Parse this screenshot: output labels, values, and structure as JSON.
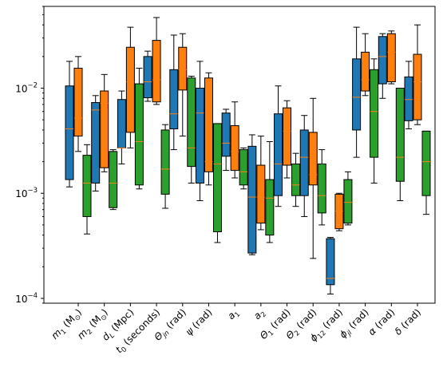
{
  "chart_data": {
    "type": "box",
    "y_scale": "log",
    "ylim": [
      9e-05,
      0.06
    ],
    "y_ticks": [
      {
        "value": 0.0001,
        "base": "10",
        "exp": "−4"
      },
      {
        "value": 0.001,
        "base": "10",
        "exp": "−3"
      },
      {
        "value": 0.01,
        "base": "10",
        "exp": "−2"
      }
    ],
    "categories": [
      {
        "main": "m",
        "sub": "1",
        "tail": " (M",
        "sun": "⊙",
        "end": ")"
      },
      {
        "main": "m",
        "sub": "2",
        "tail": " (M",
        "sun": "⊙",
        "end": ")"
      },
      {
        "main": "d",
        "sub": "L",
        "tail": " (Mpc)",
        "sun": "",
        "end": ""
      },
      {
        "main": "t",
        "sub": "0",
        "tail": " (seconds)",
        "sun": "",
        "end": ""
      },
      {
        "main": "Θ",
        "sub": "jn",
        "tail": " (rad)",
        "sun": "",
        "end": ""
      },
      {
        "main": "ψ",
        "sub": "",
        "tail": " (rad)",
        "sun": "",
        "end": ""
      },
      {
        "main": "a",
        "sub": "1",
        "tail": "",
        "sun": "",
        "end": ""
      },
      {
        "main": "a",
        "sub": "2",
        "tail": "",
        "sun": "",
        "end": ""
      },
      {
        "main": "Θ",
        "sub": "1",
        "tail": " (rad)",
        "sun": "",
        "end": ""
      },
      {
        "main": "Θ",
        "sub": "2",
        "tail": " (rad)",
        "sun": "",
        "end": ""
      },
      {
        "main": "ϕ",
        "sub": "12",
        "tail": " (rad)",
        "sun": "",
        "end": ""
      },
      {
        "main": "ϕ",
        "sub": "jl",
        "tail": " (rad)",
        "sun": "",
        "end": ""
      },
      {
        "main": "α",
        "sub": "",
        "tail": " (rad)",
        "sun": "",
        "end": ""
      },
      {
        "main": "δ",
        "sub": "",
        "tail": " (rad)",
        "sun": "",
        "end": ""
      }
    ],
    "series": [
      {
        "color": "#1f77b4",
        "boxes": [
          {
            "whislo": 0.00115,
            "q1": 0.00135,
            "med": 0.0041,
            "q3": 0.0105,
            "whishi": 0.018
          },
          {
            "whislo": 0.00105,
            "q1": 0.00125,
            "med": 0.0062,
            "q3": 0.0073,
            "whishi": 0.0085
          },
          {
            "whislo": 0.0019,
            "q1": 0.0027,
            "med": 0.0027,
            "q3": 0.0078,
            "whishi": 0.0094
          },
          {
            "whislo": 0.0075,
            "q1": 0.0081,
            "med": 0.0115,
            "q3": 0.02,
            "whishi": 0.0225
          },
          {
            "whislo": 0.0026,
            "q1": 0.0041,
            "med": 0.0057,
            "q3": 0.015,
            "whishi": 0.032
          },
          {
            "whislo": 0.00085,
            "q1": 0.00125,
            "med": 0.0058,
            "q3": 0.01,
            "whishi": 0.018
          },
          {
            "whislo": 0.00165,
            "q1": 0.00225,
            "med": 0.003,
            "q3": 0.0058,
            "whishi": 0.0063
          },
          {
            "whislo": 0.00026,
            "q1": 0.00027,
            "med": 0.00092,
            "q3": 0.0028,
            "whishi": 0.0036
          },
          {
            "whislo": 0.00075,
            "q1": 0.00095,
            "med": 0.0019,
            "q3": 0.0057,
            "whishi": 0.0105
          },
          {
            "whislo": 0.0006,
            "q1": 0.00095,
            "med": 0.0022,
            "q3": 0.004,
            "whishi": 0.0055
          },
          {
            "whislo": 0.00011,
            "q1": 0.000135,
            "med": 0.000155,
            "q3": 0.00037,
            "whishi": 0.00038
          },
          {
            "whislo": 0.0022,
            "q1": 0.004,
            "med": 0.0082,
            "q3": 0.019,
            "whishi": 0.038
          },
          {
            "whislo": 0.008,
            "q1": 0.011,
            "med": 0.02,
            "q3": 0.031,
            "whishi": 0.033
          },
          {
            "whislo": 0.0041,
            "q1": 0.0049,
            "med": 0.0078,
            "q3": 0.0128,
            "whishi": 0.018
          }
        ]
      },
      {
        "color": "#ff7f0e",
        "boxes": [
          {
            "whislo": 0.0025,
            "q1": 0.0035,
            "med": 0.0052,
            "q3": 0.0155,
            "whishi": 0.02
          },
          {
            "whislo": 0.0016,
            "q1": 0.00175,
            "med": 0.0072,
            "q3": 0.0094,
            "whishi": 0.0135
          },
          {
            "whislo": 0.0027,
            "q1": 0.0038,
            "med": 0.0115,
            "q3": 0.0245,
            "whishi": 0.038
          },
          {
            "whislo": 0.007,
            "q1": 0.0074,
            "med": 0.012,
            "q3": 0.0285,
            "whishi": 0.047
          },
          {
            "whislo": 0.0035,
            "q1": 0.0096,
            "med": 0.015,
            "q3": 0.0245,
            "whishi": 0.033
          },
          {
            "whislo": 0.0012,
            "q1": 0.0016,
            "med": 0.002,
            "q3": 0.0125,
            "whishi": 0.014
          },
          {
            "whislo": 0.0014,
            "q1": 0.00165,
            "med": 0.0025,
            "q3": 0.0044,
            "whishi": 0.0074
          },
          {
            "whislo": 0.00045,
            "q1": 0.00052,
            "med": 0.00092,
            "q3": 0.00185,
            "whishi": 0.0035
          },
          {
            "whislo": 0.0014,
            "q1": 0.00185,
            "med": 0.0039,
            "q3": 0.0065,
            "whishi": 0.0076
          },
          {
            "whislo": 0.00024,
            "q1": 0.0012,
            "med": 0.0015,
            "q3": 0.0038,
            "whishi": 0.008
          },
          {
            "whislo": 0.00044,
            "q1": 0.00046,
            "med": 0.00068,
            "q3": 0.00098,
            "whishi": 0.001
          },
          {
            "whislo": 0.0085,
            "q1": 0.0094,
            "med": 0.012,
            "q3": 0.022,
            "whishi": 0.033
          },
          {
            "whislo": 0.011,
            "q1": 0.0115,
            "med": 0.022,
            "q3": 0.033,
            "whishi": 0.035
          },
          {
            "whislo": 0.0045,
            "q1": 0.005,
            "med": 0.0115,
            "q3": 0.021,
            "whishi": 0.04
          }
        ]
      },
      {
        "color": "#2ca02c",
        "boxes": [
          {
            "whislo": 0.00041,
            "q1": 0.0006,
            "med": 0.00125,
            "q3": 0.0023,
            "whishi": 0.0029
          },
          {
            "whislo": 0.0007,
            "q1": 0.00073,
            "med": 0.00125,
            "q3": 0.0025,
            "whishi": 0.0026
          },
          {
            "whislo": 0.0011,
            "q1": 0.0012,
            "med": 0.0031,
            "q3": 0.011,
            "whishi": 0.0155
          },
          {
            "whislo": 0.00072,
            "q1": 0.00098,
            "med": 0.0017,
            "q3": 0.004,
            "whishi": 0.0045
          },
          {
            "whislo": 0.00125,
            "q1": 0.0018,
            "med": 0.0027,
            "q3": 0.0125,
            "whishi": 0.013
          },
          {
            "whislo": 0.00034,
            "q1": 0.00043,
            "med": 0.0019,
            "q3": 0.0046,
            "whishi": 0.0046
          },
          {
            "whislo": 0.0011,
            "q1": 0.0012,
            "med": 0.0016,
            "q3": 0.0026,
            "whishi": 0.0027
          },
          {
            "whislo": 0.00034,
            "q1": 0.0004,
            "med": 0.0009,
            "q3": 0.00135,
            "whishi": 0.0031
          },
          {
            "whislo": 0.00075,
            "q1": 0.00095,
            "med": 0.0012,
            "q3": 0.0019,
            "whishi": 0.0024
          },
          {
            "whislo": 0.0005,
            "q1": 0.00065,
            "med": 0.00095,
            "q3": 0.0019,
            "whishi": 0.0026
          },
          {
            "whislo": 0.0005,
            "q1": 0.00052,
            "med": 0.00082,
            "q3": 0.00135,
            "whishi": 0.0016
          },
          {
            "whislo": 0.00125,
            "q1": 0.0022,
            "med": 0.006,
            "q3": 0.015,
            "whishi": 0.019
          },
          {
            "whislo": 0.00085,
            "q1": 0.0013,
            "med": 0.0022,
            "q3": 0.01,
            "whishi": 0.01
          },
          {
            "whislo": 0.00063,
            "q1": 0.00095,
            "med": 0.002,
            "q3": 0.0039,
            "whishi": 0.0039
          }
        ]
      }
    ],
    "median_color": "#ff7f0e",
    "grid": false,
    "legend": "none"
  }
}
